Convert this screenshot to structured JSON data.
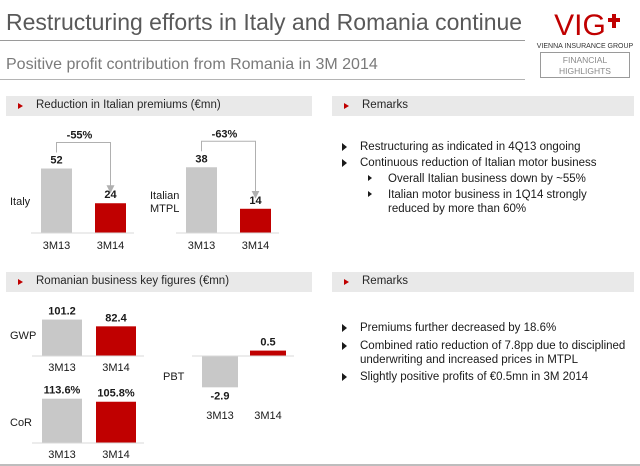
{
  "header": {
    "title": "Restructuring efforts in Italy and Romania continue",
    "subtitle": "Positive profit contribution from Romania in 3M 2014",
    "logo_text": "VIG",
    "logo_tagline": "VIENNA INSURANCE GROUP",
    "badge_line1": "FINANCIAL",
    "badge_line2": "HIGHLIGHTS"
  },
  "sections": {
    "italy_title": "Reduction in Italian premiums (€mn)",
    "remarks1_title": "Remarks",
    "romania_title": "Romanian business key figures (€mn)",
    "remarks2_title": "Remarks"
  },
  "remarks1": [
    {
      "level": 1,
      "text": "Restructuring as indicated in 4Q13 ongoing"
    },
    {
      "level": 1,
      "text": "Continuous reduction of Italian motor business"
    },
    {
      "level": 2,
      "text": "Overall Italian business down by ~55%"
    },
    {
      "level": 2,
      "text": "Italian motor business in 1Q14 strongly reduced by more than 60%"
    }
  ],
  "remarks2": [
    {
      "level": 1,
      "text": "Premiums further decreased by 18.6%"
    },
    {
      "level": 1,
      "text": "Combined ratio reduction of 7.8pp due to disciplined underwriting and increased prices in MTPL"
    },
    {
      "level": 1,
      "text": "Slightly positive profits of €0.5mn in 3M 2014"
    }
  ],
  "colors": {
    "red": "#c00000",
    "gray": "#c8c8c8",
    "section_bar": "#e9e9e9"
  },
  "chart_data": [
    {
      "id": "italy",
      "type": "bar",
      "title": "Italy",
      "categories": [
        "3M13",
        "3M14"
      ],
      "values": [
        52,
        24
      ],
      "value_labels": [
        "52",
        "24"
      ],
      "change_label": "-55%",
      "bar_colors": [
        "gray",
        "red"
      ]
    },
    {
      "id": "italian_mtpl",
      "type": "bar",
      "title": "Italian MTPL",
      "categories": [
        "3M13",
        "3M14"
      ],
      "values": [
        38,
        14
      ],
      "value_labels": [
        "38",
        "14"
      ],
      "change_label": "-63%",
      "bar_colors": [
        "gray",
        "red"
      ]
    },
    {
      "id": "gwp",
      "type": "bar",
      "title": "GWP",
      "categories": [
        "3M13",
        "3M14"
      ],
      "values": [
        101.2,
        82.4
      ],
      "value_labels": [
        "101.2",
        "82.4"
      ],
      "bar_colors": [
        "gray",
        "red"
      ]
    },
    {
      "id": "cor",
      "type": "bar",
      "title": "CoR",
      "categories": [
        "3M13",
        "3M14"
      ],
      "values": [
        113.6,
        105.8
      ],
      "value_labels": [
        "113.6%",
        "105.8%"
      ],
      "bar_colors": [
        "gray",
        "red"
      ]
    },
    {
      "id": "pbt",
      "type": "bar",
      "title": "PBT",
      "categories": [
        "3M13",
        "3M14"
      ],
      "values": [
        -2.9,
        0.5
      ],
      "value_labels": [
        "-2.9",
        "0.5"
      ],
      "bar_colors": [
        "gray",
        "red"
      ]
    }
  ]
}
